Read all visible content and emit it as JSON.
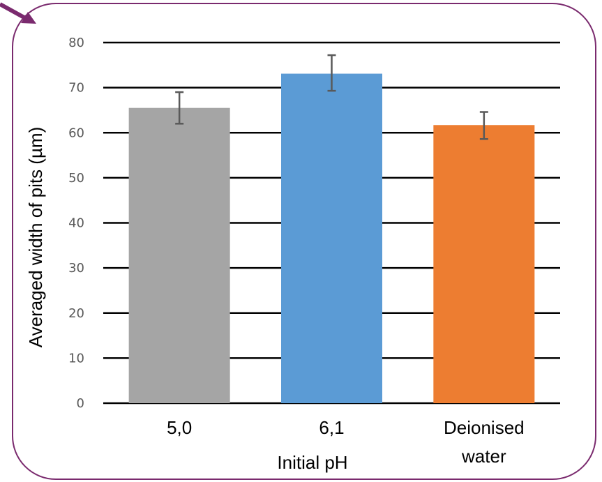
{
  "chart_data": {
    "type": "bar",
    "categories": [
      "5,0",
      "6,1",
      "Deionised water"
    ],
    "category_lines": [
      [
        "5,0"
      ],
      [
        "6,1"
      ],
      [
        "Deionised",
        "water"
      ]
    ],
    "values": [
      65.5,
      73.1,
      61.7
    ],
    "error_low": [
      62.0,
      69.3,
      58.6
    ],
    "error_high": [
      69.0,
      77.2,
      64.6
    ],
    "bar_colors": [
      "#a5a5a5",
      "#5b9bd5",
      "#ed7d31"
    ],
    "title": "",
    "xlabel": "Initial pH",
    "ylabel": "Averaged width of pits (µm)",
    "ylim": [
      0,
      80
    ],
    "yticks": [
      0,
      10,
      20,
      30,
      40,
      50,
      60,
      70,
      80
    ],
    "ytick_labels": [
      "0",
      "10",
      "20",
      "30",
      "40",
      "50",
      "60",
      "70",
      "80"
    ],
    "grid": true,
    "legend": "none"
  },
  "colors": {
    "frame_border": "#7a2a6e",
    "arrow": "#7a2a6e",
    "grid": "#000000",
    "error_bar": "#595959"
  }
}
